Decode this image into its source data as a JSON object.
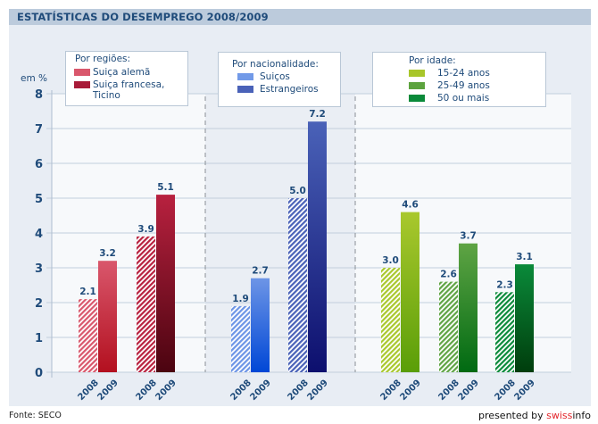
{
  "header": {
    "title": "ESTATÍSTICAS DO DESEMPREGO 2008/2009"
  },
  "footer": {
    "source": "Fonte: SECO",
    "presented_prefix": "presented by ",
    "brand_red": "swiss",
    "brand_rest": "info"
  },
  "chart_data": {
    "type": "bar",
    "title": "ESTATÍSTICAS DO DESEMPREGO 2008/2009",
    "ylabel": "em %",
    "xlabel": "",
    "ylim": [
      0,
      8
    ],
    "yticks": [
      "0",
      "1",
      "2",
      "3",
      "4",
      "5",
      "6",
      "7",
      "8"
    ],
    "grid": true,
    "groups": [
      {
        "legend_title": "Por regiões:",
        "series": [
          {
            "name": "Suiça alemã",
            "name_line2": "",
            "color": "#d9576c",
            "years": [
              "2008",
              "2009"
            ],
            "values": [
              2.1,
              3.2
            ],
            "labels": [
              "2.1",
              "3.2"
            ],
            "top": "#d9576c",
            "bottom": "#b3101f"
          },
          {
            "name": "Suiça francesa,",
            "name_line2": "Ticino",
            "color": "#a81a38",
            "years": [
              "2008",
              "2009"
            ],
            "values": [
              3.9,
              5.1
            ],
            "labels": [
              "3.9",
              "5.1"
            ],
            "top": "#b8213f",
            "bottom": "#4b0410"
          }
        ]
      },
      {
        "legend_title": "Por nacionalidade:",
        "series": [
          {
            "name": "Suiços",
            "name_line2": "",
            "color": "#729ae8",
            "years": [
              "2008",
              "2009"
            ],
            "values": [
              1.9,
              2.7
            ],
            "labels": [
              "1.9",
              "2.7"
            ],
            "top": "#6d95e6",
            "bottom": "#0047d6"
          },
          {
            "name": "Estrangeiros",
            "name_line2": "",
            "color": "#4a62b8",
            "years": [
              "2008",
              "2009"
            ],
            "values": [
              5.0,
              7.2
            ],
            "labels": [
              "5.0",
              "7.2"
            ],
            "top": "#4a62b8",
            "bottom": "#0d0f6e"
          }
        ]
      },
      {
        "legend_title": "Por idade:",
        "series": [
          {
            "name": "15-24 anos",
            "name_line2": "",
            "color": "#a8c62a",
            "years": [
              "2008",
              "2009"
            ],
            "values": [
              3.0,
              4.6
            ],
            "labels": [
              "3.0",
              "4.6"
            ],
            "top": "#a9c82d",
            "bottom": "#5a9e08"
          },
          {
            "name": "25-49 anos",
            "name_line2": "",
            "color": "#5ca33e",
            "years": [
              "2008",
              "2009"
            ],
            "values": [
              2.6,
              3.7
            ],
            "labels": [
              "2.6",
              "3.7"
            ],
            "top": "#5fa444",
            "bottom": "#006a12"
          },
          {
            "name": "50 ou mais",
            "name_line2": "",
            "color": "#0a8a3a",
            "years": [
              "2008",
              "2009"
            ],
            "values": [
              2.3,
              3.1
            ],
            "labels": [
              "2.3",
              "3.1"
            ],
            "top": "#0a8a3a",
            "bottom": "#003d0c"
          }
        ]
      }
    ]
  }
}
